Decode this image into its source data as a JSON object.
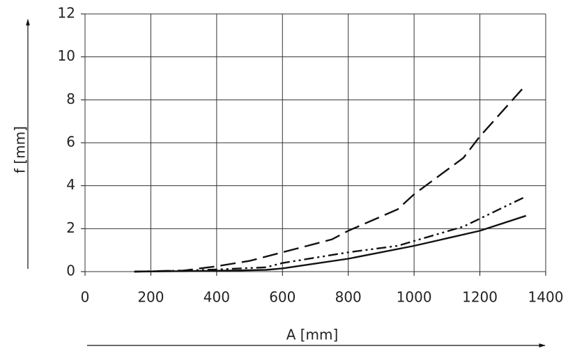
{
  "chart_data": {
    "type": "line",
    "xlabel": "A [mm]",
    "ylabel": "f [mm]",
    "xlim": [
      0,
      1400
    ],
    "xticks": [
      0,
      200,
      400,
      600,
      800,
      1000,
      1200,
      1400
    ],
    "ylim": [
      0,
      12
    ],
    "yticks": [
      0,
      2,
      4,
      6,
      8,
      10,
      12
    ],
    "grid": true,
    "series": [
      {
        "color": "#111111",
        "style": "dashed",
        "x": [
          150,
          300,
          400,
          500,
          600,
          750,
          800,
          950,
          1000,
          1150,
          1200,
          1340
        ],
        "values": [
          0,
          0.05,
          0.25,
          0.5,
          0.9,
          1.5,
          1.9,
          2.9,
          3.6,
          5.3,
          6.3,
          8.7
        ]
      },
      {
        "color": "#111111",
        "style": "dash-dot-dot",
        "x": [
          150,
          300,
          400,
          550,
          600,
          800,
          950,
          1150,
          1340
        ],
        "values": [
          0,
          0.05,
          0.1,
          0.2,
          0.4,
          0.9,
          1.2,
          2.1,
          3.5
        ]
      },
      {
        "color": "#111111",
        "style": "solid",
        "x": [
          150,
          300,
          450,
          550,
          600,
          800,
          1000,
          1200,
          1340
        ],
        "values": [
          0,
          0.02,
          0.05,
          0.08,
          0.15,
          0.6,
          1.2,
          1.9,
          2.6
        ]
      }
    ]
  }
}
